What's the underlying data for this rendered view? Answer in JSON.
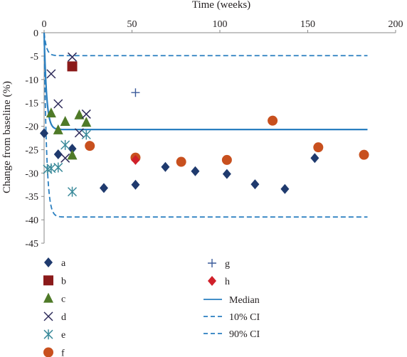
{
  "chart_data": {
    "type": "scatter",
    "xlabel": "Time (weeks)",
    "ylabel": "Change from baseline (%)",
    "xlim": [
      0,
      200
    ],
    "ylim": [
      -45,
      0
    ],
    "x_ticks": [
      0,
      50,
      100,
      150,
      200
    ],
    "y_ticks": [
      0,
      -5,
      -10,
      -15,
      -20,
      -25,
      -30,
      -35,
      -40,
      -45
    ],
    "x_axis_position": "top",
    "grid": false,
    "legend_position": "bottom",
    "colors": {
      "a": "#1f3a6e",
      "b": "#8b1a1a",
      "c": "#4f7a28",
      "d": "#2d2a5a",
      "e": "#3a8a9a",
      "f": "#c8501e",
      "g": "#3a5a9a",
      "h": "#d0202a",
      "curves": "#2a7fc0"
    },
    "series": [
      {
        "name": "a",
        "marker": "diamond",
        "points": [
          [
            0,
            -21.5
          ],
          [
            8,
            -26
          ],
          [
            16,
            -24.8
          ],
          [
            34,
            -33.2
          ],
          [
            52,
            -32.5
          ],
          [
            69,
            -28.7
          ],
          [
            86,
            -29.6
          ],
          [
            104,
            -30.2
          ],
          [
            120,
            -32.4
          ],
          [
            137,
            -33.4
          ],
          [
            154,
            -26.8
          ]
        ]
      },
      {
        "name": "b",
        "marker": "square",
        "points": [
          [
            16,
            -7.2
          ]
        ]
      },
      {
        "name": "c",
        "marker": "triangle",
        "points": [
          [
            4,
            -17.2
          ],
          [
            8,
            -20.8
          ],
          [
            12,
            -19
          ],
          [
            16,
            -26.2
          ],
          [
            20,
            -17.6
          ],
          [
            24,
            -19.2
          ]
        ]
      },
      {
        "name": "d",
        "marker": "x",
        "points": [
          [
            4,
            -8.8
          ],
          [
            8,
            -15.2
          ],
          [
            12,
            -26.8
          ],
          [
            16,
            -5.2
          ],
          [
            20,
            -21.4
          ],
          [
            24,
            -17.4
          ]
        ]
      },
      {
        "name": "e",
        "marker": "asterisk",
        "points": [
          [
            2,
            -29.2
          ],
          [
            4,
            -29
          ],
          [
            8,
            -28.8
          ],
          [
            12,
            -24
          ],
          [
            16,
            -34
          ],
          [
            24,
            -21.8
          ]
        ]
      },
      {
        "name": "f",
        "marker": "circle",
        "points": [
          [
            26,
            -24.2
          ],
          [
            52,
            -26.7
          ],
          [
            78,
            -27.6
          ],
          [
            104,
            -27.2
          ],
          [
            130,
            -18.8
          ],
          [
            156,
            -24.5
          ],
          [
            182,
            -26.1
          ]
        ]
      },
      {
        "name": "g",
        "marker": "plus",
        "points": [
          [
            52,
            -12.8
          ]
        ]
      },
      {
        "name": "h",
        "marker": "diamond",
        "points": [
          [
            52,
            -27.2
          ]
        ]
      }
    ],
    "curves": [
      {
        "name": "Median",
        "style": "solid",
        "plateau": -20.7,
        "x_end": 184
      },
      {
        "name": "10% CI",
        "style": "dashed",
        "plateau": -4.9,
        "x_end": 184
      },
      {
        "name": "90% CI",
        "style": "dashed",
        "plateau": -39.4,
        "x_end": 184
      }
    ]
  }
}
